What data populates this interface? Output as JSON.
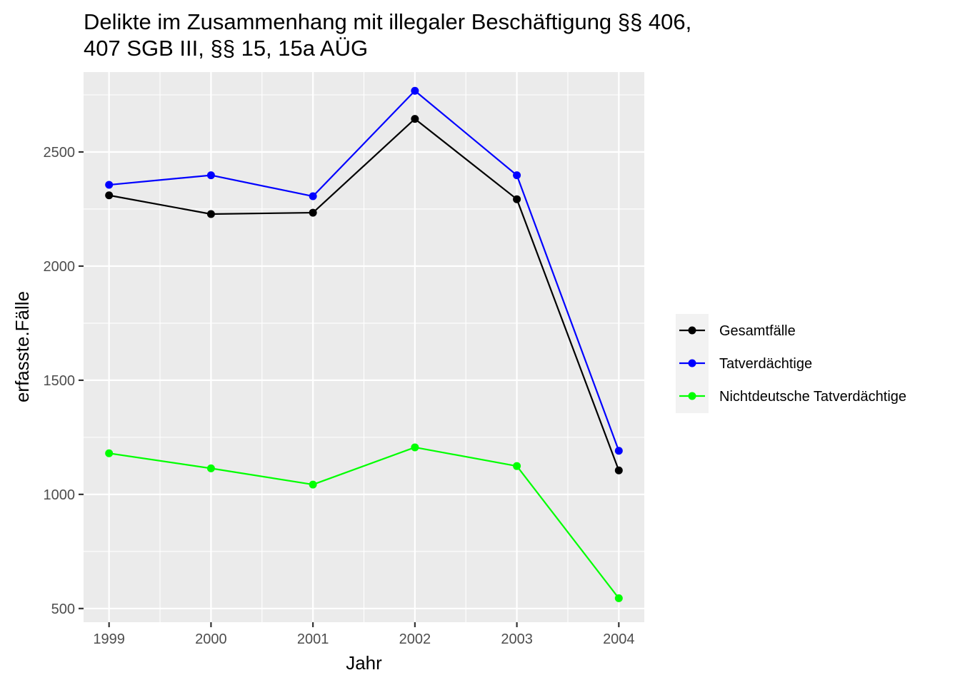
{
  "chart_data": {
    "type": "line",
    "title_lines": [
      "Delikte im Zusammenhang mit illegaler Beschäftigung §§ 406,",
      "407 SGB III, §§ 15, 15a AÜG"
    ],
    "xlabel": "Jahr",
    "ylabel": "erfasste.Fälle",
    "x": [
      1999,
      2000,
      2001,
      2002,
      2003,
      2004
    ],
    "x_tick_labels": [
      "1999",
      "2000",
      "2001",
      "2002",
      "2003",
      "2004"
    ],
    "xlim": [
      1998.75,
      2004.25
    ],
    "ylim": [
      440,
      2850
    ],
    "y_ticks": [
      500,
      1000,
      1500,
      2000,
      2500
    ],
    "y_tick_labels": [
      "500",
      "1000",
      "1500",
      "2000",
      "2500"
    ],
    "grid": true,
    "legend_position": "right",
    "series": [
      {
        "name": "Gesamtfälle",
        "color": "#000000",
        "values": [
          2310,
          2228,
          2234,
          2645,
          2293,
          1105
        ]
      },
      {
        "name": "Tatverdächtige",
        "color": "#0000FF",
        "values": [
          2356,
          2398,
          2306,
          2768,
          2398,
          1191
        ]
      },
      {
        "name": "Nichtdeutsche Tatverdächtige",
        "color": "#00FF00",
        "values": [
          1180,
          1114,
          1043,
          1206,
          1124,
          545
        ]
      }
    ]
  },
  "colors": {
    "panel_background": "#EBEBEB",
    "grid_major": "#FFFFFF",
    "tick_text": "#4D4D4D",
    "legend_background": "#F2F2F2"
  }
}
